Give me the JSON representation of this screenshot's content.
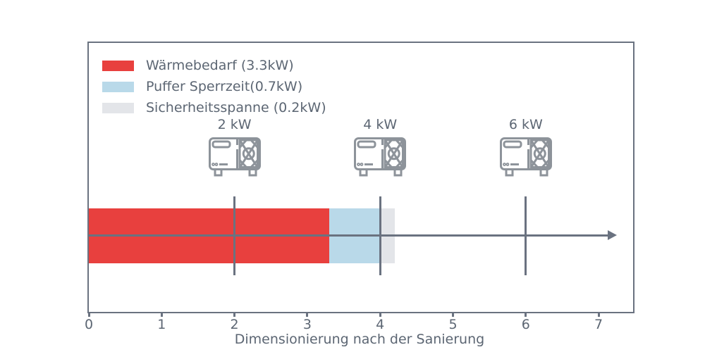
{
  "title": "Dimensionierung nach der Sanierung",
  "colors": {
    "heat_demand_red": "#e8403e",
    "buffer_blue": "#b9d9e9",
    "safety_gray": "#e3e5e9",
    "line_slate": "#6a7280",
    "text_slate": "#5c6673",
    "icon_gray": "#8d939a",
    "background": "#ffffff"
  },
  "legend": [
    {
      "label": "Wärmebedarf (3.3kW)",
      "color": "#e8403e"
    },
    {
      "label": "Puffer Sperrzeit(0.7kW)",
      "color": "#b9d9e9"
    },
    {
      "label": "Sicherheitsspanne (0.2kW)",
      "color": "#e3e5e9"
    }
  ],
  "chart_data": {
    "type": "bar",
    "orientation": "horizontal",
    "title": "Dimensionierung nach der Sanierung",
    "xlabel": "Dimensionierung nach der Sanierung",
    "ylabel": "",
    "xlim": [
      0,
      7.5
    ],
    "x_ticks": [
      "0",
      "1",
      "2",
      "3",
      "4",
      "5",
      "6",
      "7"
    ],
    "tick_values": [
      0,
      1,
      2,
      3,
      4,
      5,
      6,
      7
    ],
    "grid": false,
    "legend_position": "upper left",
    "segments": [
      {
        "name": "Wärmebedarf",
        "value_kw": 3.3,
        "color": "#e8403e"
      },
      {
        "name": "Puffer Sperrzeit",
        "value_kw": 0.7,
        "color": "#b9d9e9"
      },
      {
        "name": "Sicherheitsspanne",
        "value_kw": 0.2,
        "color": "#e3e5e9"
      }
    ],
    "total_kw": 4.2,
    "axis_arrow_end_kw": 7.25,
    "heat_pumps": [
      {
        "label": "2 kW",
        "x_kw": 2
      },
      {
        "label": "4 kW",
        "x_kw": 4
      },
      {
        "label": "6 kW",
        "x_kw": 6
      }
    ]
  }
}
